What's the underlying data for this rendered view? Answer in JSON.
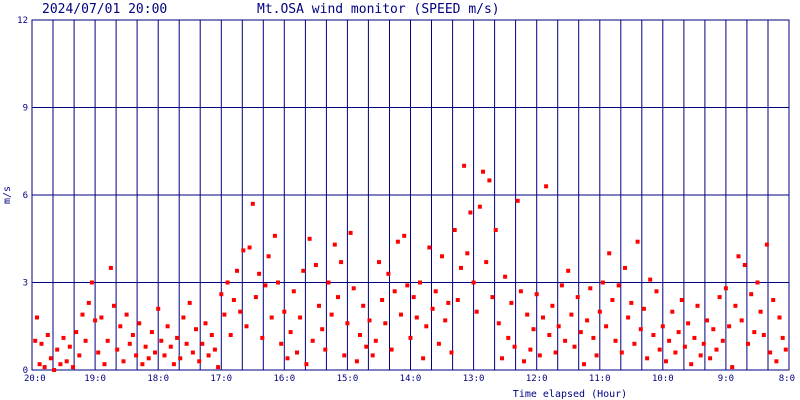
{
  "header": {
    "timestamp": "2024/07/01 20:00",
    "title": "Mt.OSA wind monitor (SPEED m/s)"
  },
  "chart_data": {
    "type": "scatter",
    "title": "Mt.OSA wind monitor (SPEED m/s)",
    "xlabel": "Time elapsed (Hour)",
    "ylabel": "m/s",
    "x_unit": "hours elapsed before 2024/07/01 20:00",
    "xlim": [
      0,
      12
    ],
    "ylim": [
      0,
      12
    ],
    "y_ticks": [
      0,
      3,
      6,
      9,
      12
    ],
    "y_tick_labels": [
      "0",
      "3",
      "6",
      "9",
      "12"
    ],
    "x_ticks": [
      0,
      1,
      2,
      3,
      4,
      5,
      6,
      7,
      8,
      9,
      10,
      11,
      12
    ],
    "x_tick_labels": [
      "20:0",
      "19:0",
      "18:0",
      "17:0",
      "16:0",
      "15:0",
      "14:0",
      "13:0",
      "12:0",
      "11:0",
      "10:0",
      "9:0",
      "8:0"
    ],
    "grid": true,
    "colors": {
      "grid": "#000080",
      "points": "#ff0000",
      "text": "#000080"
    },
    "series": [
      {
        "points": [
          [
            0.05,
            1.0
          ],
          [
            0.08,
            1.8
          ],
          [
            0.12,
            0.2
          ],
          [
            0.15,
            0.9
          ],
          [
            0.2,
            0.1
          ],
          [
            0.25,
            1.2
          ],
          [
            0.3,
            0.4
          ],
          [
            0.35,
            0.0
          ],
          [
            0.4,
            0.7
          ],
          [
            0.45,
            0.2
          ],
          [
            0.5,
            1.1
          ],
          [
            0.55,
            0.3
          ],
          [
            0.6,
            0.8
          ],
          [
            0.65,
            0.1
          ],
          [
            0.7,
            1.3
          ],
          [
            0.75,
            0.5
          ],
          [
            0.8,
            1.9
          ],
          [
            0.85,
            1.0
          ],
          [
            0.9,
            2.3
          ],
          [
            0.95,
            3.0
          ],
          [
            1.0,
            1.7
          ],
          [
            1.05,
            0.6
          ],
          [
            1.1,
            1.8
          ],
          [
            1.15,
            0.2
          ],
          [
            1.2,
            1.0
          ],
          [
            1.25,
            3.5
          ],
          [
            1.3,
            2.2
          ],
          [
            1.35,
            0.7
          ],
          [
            1.4,
            1.5
          ],
          [
            1.45,
            0.3
          ],
          [
            1.5,
            1.9
          ],
          [
            1.55,
            0.9
          ],
          [
            1.6,
            1.2
          ],
          [
            1.65,
            0.5
          ],
          [
            1.7,
            1.6
          ],
          [
            1.75,
            0.2
          ],
          [
            1.8,
            0.8
          ],
          [
            1.85,
            0.4
          ],
          [
            1.9,
            1.3
          ],
          [
            1.95,
            0.6
          ],
          [
            2.0,
            2.1
          ],
          [
            2.05,
            1.0
          ],
          [
            2.1,
            0.5
          ],
          [
            2.15,
            1.5
          ],
          [
            2.2,
            0.8
          ],
          [
            2.25,
            0.2
          ],
          [
            2.3,
            1.1
          ],
          [
            2.35,
            0.4
          ],
          [
            2.4,
            1.8
          ],
          [
            2.45,
            0.9
          ],
          [
            2.5,
            2.3
          ],
          [
            2.55,
            0.6
          ],
          [
            2.6,
            1.4
          ],
          [
            2.65,
            0.3
          ],
          [
            2.7,
            0.9
          ],
          [
            2.75,
            1.6
          ],
          [
            2.8,
            0.5
          ],
          [
            2.85,
            1.2
          ],
          [
            2.9,
            0.7
          ],
          [
            2.95,
            0.1
          ],
          [
            3.0,
            2.6
          ],
          [
            3.05,
            1.9
          ],
          [
            3.1,
            3.0
          ],
          [
            3.15,
            1.2
          ],
          [
            3.2,
            2.4
          ],
          [
            3.25,
            3.4
          ],
          [
            3.3,
            2.0
          ],
          [
            3.35,
            4.1
          ],
          [
            3.4,
            1.5
          ],
          [
            3.45,
            4.2
          ],
          [
            3.5,
            5.7
          ],
          [
            3.55,
            2.5
          ],
          [
            3.6,
            3.3
          ],
          [
            3.65,
            1.1
          ],
          [
            3.7,
            2.9
          ],
          [
            3.75,
            3.9
          ],
          [
            3.8,
            1.8
          ],
          [
            3.85,
            4.6
          ],
          [
            3.9,
            3.0
          ],
          [
            3.95,
            0.9
          ],
          [
            4.0,
            2.0
          ],
          [
            4.05,
            0.4
          ],
          [
            4.1,
            1.3
          ],
          [
            4.15,
            2.7
          ],
          [
            4.2,
            0.6
          ],
          [
            4.25,
            1.8
          ],
          [
            4.3,
            3.4
          ],
          [
            4.35,
            0.2
          ],
          [
            4.4,
            4.5
          ],
          [
            4.45,
            1.0
          ],
          [
            4.5,
            3.6
          ],
          [
            4.55,
            2.2
          ],
          [
            4.6,
            1.4
          ],
          [
            4.65,
            0.7
          ],
          [
            4.7,
            3.0
          ],
          [
            4.75,
            1.9
          ],
          [
            4.8,
            4.3
          ],
          [
            4.85,
            2.5
          ],
          [
            4.9,
            3.7
          ],
          [
            4.95,
            0.5
          ],
          [
            5.0,
            1.6
          ],
          [
            5.05,
            4.7
          ],
          [
            5.1,
            2.8
          ],
          [
            5.15,
            0.3
          ],
          [
            5.2,
            1.2
          ],
          [
            5.25,
            2.2
          ],
          [
            5.3,
            0.8
          ],
          [
            5.35,
            1.7
          ],
          [
            5.4,
            0.5
          ],
          [
            5.45,
            1.0
          ],
          [
            5.5,
            3.7
          ],
          [
            5.55,
            2.4
          ],
          [
            5.6,
            1.6
          ],
          [
            5.65,
            3.3
          ],
          [
            5.7,
            0.7
          ],
          [
            5.75,
            2.7
          ],
          [
            5.8,
            4.4
          ],
          [
            5.85,
            1.9
          ],
          [
            5.9,
            4.6
          ],
          [
            5.95,
            2.9
          ],
          [
            6.0,
            1.1
          ],
          [
            6.05,
            2.5
          ],
          [
            6.1,
            1.8
          ],
          [
            6.15,
            3.0
          ],
          [
            6.2,
            0.4
          ],
          [
            6.25,
            1.5
          ],
          [
            6.3,
            4.2
          ],
          [
            6.35,
            2.1
          ],
          [
            6.4,
            2.7
          ],
          [
            6.45,
            0.9
          ],
          [
            6.5,
            3.9
          ],
          [
            6.55,
            1.7
          ],
          [
            6.6,
            2.3
          ],
          [
            6.65,
            0.6
          ],
          [
            6.7,
            4.8
          ],
          [
            6.75,
            2.4
          ],
          [
            6.8,
            3.5
          ],
          [
            6.85,
            7.0
          ],
          [
            6.9,
            4.0
          ],
          [
            6.95,
            5.4
          ],
          [
            7.0,
            3.0
          ],
          [
            7.05,
            2.0
          ],
          [
            7.1,
            5.6
          ],
          [
            7.15,
            6.8
          ],
          [
            7.2,
            3.7
          ],
          [
            7.25,
            6.5
          ],
          [
            7.3,
            2.5
          ],
          [
            7.35,
            4.8
          ],
          [
            7.4,
            1.6
          ],
          [
            7.45,
            0.4
          ],
          [
            7.5,
            3.2
          ],
          [
            7.55,
            1.1
          ],
          [
            7.6,
            2.3
          ],
          [
            7.65,
            0.8
          ],
          [
            7.7,
            5.8
          ],
          [
            7.75,
            2.7
          ],
          [
            7.8,
            0.3
          ],
          [
            7.85,
            1.9
          ],
          [
            7.9,
            0.7
          ],
          [
            7.95,
            1.4
          ],
          [
            8.0,
            2.6
          ],
          [
            8.05,
            0.5
          ],
          [
            8.1,
            1.8
          ],
          [
            8.15,
            6.3
          ],
          [
            8.2,
            1.2
          ],
          [
            8.25,
            2.2
          ],
          [
            8.3,
            0.6
          ],
          [
            8.35,
            1.5
          ],
          [
            8.4,
            2.9
          ],
          [
            8.45,
            1.0
          ],
          [
            8.5,
            3.4
          ],
          [
            8.55,
            1.9
          ],
          [
            8.6,
            0.8
          ],
          [
            8.65,
            2.5
          ],
          [
            8.7,
            1.3
          ],
          [
            8.75,
            0.2
          ],
          [
            8.8,
            1.7
          ],
          [
            8.85,
            2.8
          ],
          [
            8.9,
            1.1
          ],
          [
            8.95,
            0.5
          ],
          [
            9.0,
            2.0
          ],
          [
            9.05,
            3.0
          ],
          [
            9.1,
            1.5
          ],
          [
            9.15,
            4.0
          ],
          [
            9.2,
            2.4
          ],
          [
            9.25,
            1.0
          ],
          [
            9.3,
            2.9
          ],
          [
            9.35,
            0.6
          ],
          [
            9.4,
            3.5
          ],
          [
            9.45,
            1.8
          ],
          [
            9.5,
            2.3
          ],
          [
            9.55,
            0.9
          ],
          [
            9.6,
            4.4
          ],
          [
            9.65,
            1.4
          ],
          [
            9.7,
            2.1
          ],
          [
            9.75,
            0.4
          ],
          [
            9.8,
            3.1
          ],
          [
            9.85,
            1.2
          ],
          [
            9.9,
            2.7
          ],
          [
            9.95,
            0.7
          ],
          [
            10.0,
            1.5
          ],
          [
            10.05,
            0.3
          ],
          [
            10.1,
            1.0
          ],
          [
            10.15,
            2.0
          ],
          [
            10.2,
            0.6
          ],
          [
            10.25,
            1.3
          ],
          [
            10.3,
            2.4
          ],
          [
            10.35,
            0.8
          ],
          [
            10.4,
            1.6
          ],
          [
            10.45,
            0.2
          ],
          [
            10.5,
            1.1
          ],
          [
            10.55,
            2.2
          ],
          [
            10.6,
            0.5
          ],
          [
            10.65,
            0.9
          ],
          [
            10.7,
            1.7
          ],
          [
            10.75,
            0.4
          ],
          [
            10.8,
            1.4
          ],
          [
            10.85,
            0.7
          ],
          [
            10.9,
            2.5
          ],
          [
            10.95,
            1.0
          ],
          [
            11.0,
            2.8
          ],
          [
            11.05,
            1.5
          ],
          [
            11.1,
            0.1
          ],
          [
            11.15,
            2.2
          ],
          [
            11.2,
            3.9
          ],
          [
            11.25,
            1.7
          ],
          [
            11.3,
            3.6
          ],
          [
            11.35,
            0.9
          ],
          [
            11.4,
            2.6
          ],
          [
            11.45,
            1.3
          ],
          [
            11.5,
            3.0
          ],
          [
            11.55,
            2.0
          ],
          [
            11.6,
            1.2
          ],
          [
            11.65,
            4.3
          ],
          [
            11.7,
            0.6
          ],
          [
            11.75,
            2.4
          ],
          [
            11.8,
            0.3
          ],
          [
            11.85,
            1.8
          ],
          [
            11.9,
            1.1
          ],
          [
            11.95,
            0.7
          ]
        ]
      }
    ]
  }
}
